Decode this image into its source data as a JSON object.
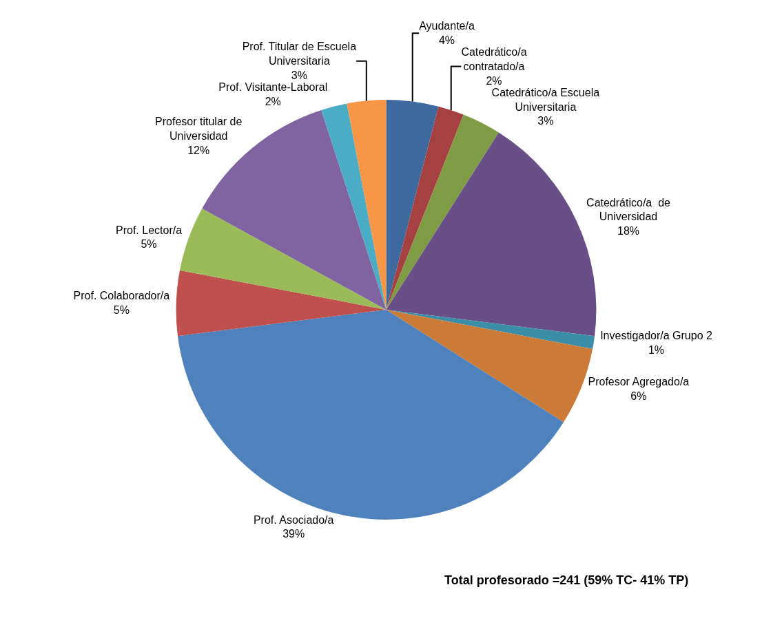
{
  "chart_data": {
    "type": "pie",
    "categories": [
      "Ayudante/a",
      "Catedrático/a contratado/a",
      "Catedrático/a Escuela Universitaria",
      "Catedrático/a  de Universidad",
      "Investigador/a Grupo 2",
      "Profesor Agregado/a",
      "Prof. Asociado/a",
      "Prof. Colaborador/a",
      "Prof. Lector/a",
      "Profesor titular de Universidad",
      "Prof. Visitante-Laboral",
      "Prof. Titular de Escuela Universitaria"
    ],
    "values": [
      4,
      2,
      3,
      18,
      1,
      6,
      39,
      5,
      5,
      12,
      2,
      3
    ],
    "value_labels": [
      "4%",
      "2%",
      "3%",
      "18%",
      "1%",
      "6%",
      "39%",
      "5%",
      "5%",
      "12%",
      "2%",
      "3%"
    ],
    "colors": [
      "#3f6aa0",
      "#a54141",
      "#7f9c45",
      "#694f87",
      "#3a8ea8",
      "#cc7a37",
      "#4f81bd",
      "#c0504d",
      "#9bbb59",
      "#8064a2",
      "#4bacc6",
      "#f79646"
    ],
    "legend": false,
    "annotations": [
      "Total profesorado =241 (59% TC- 41% TP)"
    ]
  }
}
